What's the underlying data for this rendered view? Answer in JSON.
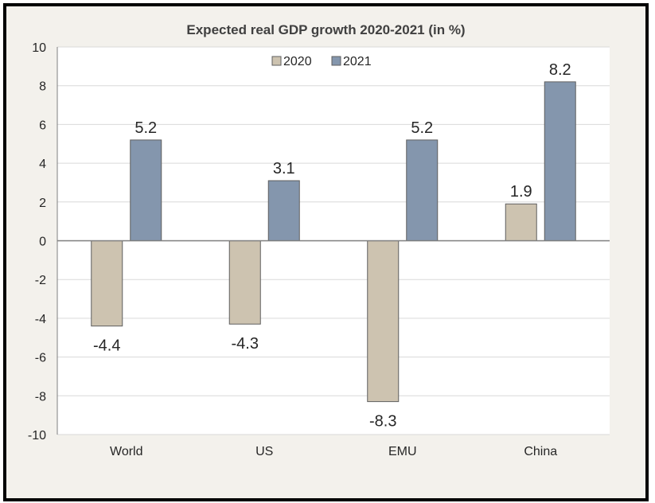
{
  "chart_data": {
    "type": "bar",
    "title": "Expected real GDP growth 2020-2021 (in %)",
    "xlabel": "",
    "ylabel": "",
    "categories": [
      "World",
      "US",
      "EMU",
      "China"
    ],
    "series": [
      {
        "name": "2020",
        "values": [
          -4.4,
          -4.3,
          -8.3,
          1.9
        ],
        "color": "#cdc3b0"
      },
      {
        "name": "2021",
        "values": [
          5.2,
          3.1,
          5.2,
          8.2
        ],
        "color": "#8496ad"
      }
    ],
    "ylim": [
      -10,
      10
    ],
    "yticks": [
      10,
      8,
      6,
      4,
      2,
      0,
      -2,
      -4,
      -6,
      -8,
      -10
    ],
    "grid": true,
    "legend_position": "top-center",
    "colors": {
      "background": "#f3f1ec",
      "plot_background": "#ffffff",
      "grid": "#d9d9d9",
      "axis": "#7f7f7f",
      "bar_border": "#5f5f5f",
      "text": "#262626"
    }
  }
}
